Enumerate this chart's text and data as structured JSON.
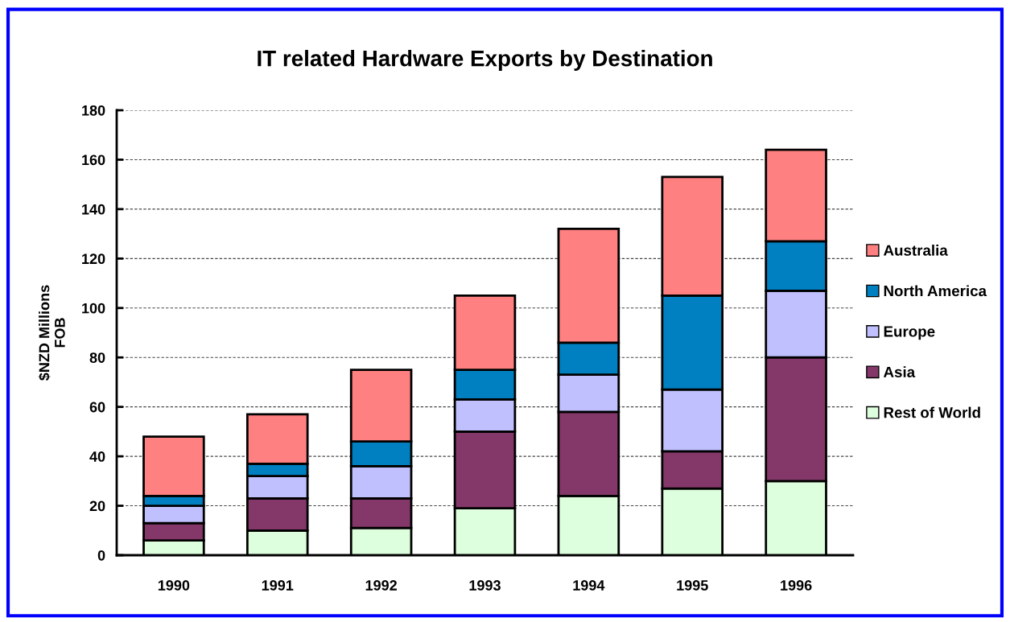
{
  "chart_data": {
    "type": "bar",
    "title": "IT related Hardware Exports by Destination",
    "ylabel": "$NZD Millions\nFOB",
    "categories": [
      "1990",
      "1991",
      "1992",
      "1993",
      "1994",
      "1995",
      "1996"
    ],
    "stacked": true,
    "series": [
      {
        "name": "Rest of World",
        "color": "#ddffdd",
        "values": [
          6,
          10,
          11,
          19,
          24,
          27,
          30
        ]
      },
      {
        "name": "Asia",
        "color": "#843869",
        "values": [
          7,
          13,
          12,
          31,
          34,
          15,
          50
        ]
      },
      {
        "name": "Europe",
        "color": "#c0c0ff",
        "values": [
          7,
          9,
          13,
          13,
          15,
          25,
          27
        ]
      },
      {
        "name": "North America",
        "color": "#0080c0",
        "values": [
          4,
          5,
          10,
          12,
          13,
          38,
          20
        ]
      },
      {
        "name": "Australia",
        "color": "#ff8080",
        "values": [
          24,
          20,
          29,
          30,
          46,
          48,
          37
        ]
      }
    ],
    "ylim": [
      0,
      180
    ],
    "yticks": [
      0,
      20,
      40,
      60,
      80,
      100,
      120,
      140,
      160,
      180
    ],
    "grid": "y",
    "legend": "right"
  }
}
